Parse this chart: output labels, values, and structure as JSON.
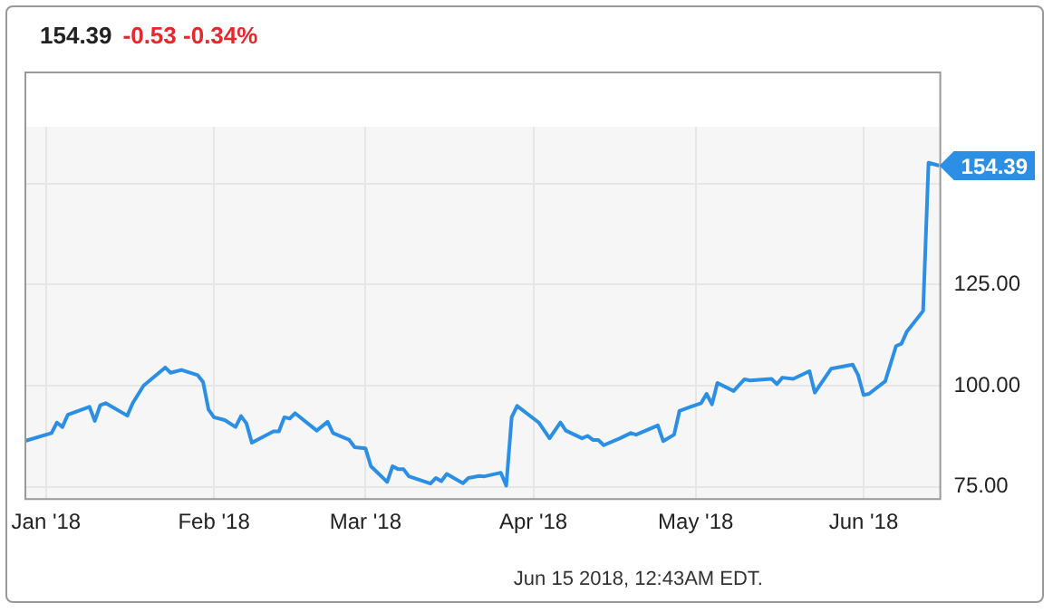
{
  "chart_data": {
    "type": "line",
    "title": "154.39",
    "subtitle": "-0.53 -0.34%",
    "x": [
      "2017-12-28",
      "2018-01-02",
      "2018-01-03",
      "2018-01-04",
      "2018-01-05",
      "2018-01-09",
      "2018-01-10",
      "2018-01-11",
      "2018-01-12",
      "2018-01-16",
      "2018-01-17",
      "2018-01-19",
      "2018-01-23",
      "2018-01-24",
      "2018-01-26",
      "2018-01-29",
      "2018-01-30",
      "2018-01-31",
      "2018-02-01",
      "2018-02-03",
      "2018-02-05",
      "2018-02-06",
      "2018-02-07",
      "2018-02-08",
      "2018-02-12",
      "2018-02-13",
      "2018-02-14",
      "2018-02-15",
      "2018-02-16",
      "2018-02-20",
      "2018-02-22",
      "2018-02-23",
      "2018-02-26",
      "2018-02-27",
      "2018-03-01",
      "2018-03-02",
      "2018-03-05",
      "2018-03-06",
      "2018-03-07",
      "2018-03-08",
      "2018-03-09",
      "2018-03-13",
      "2018-03-14",
      "2018-03-15",
      "2018-03-16",
      "2018-03-19",
      "2018-03-20",
      "2018-03-22",
      "2018-03-23",
      "2018-03-26",
      "2018-03-27",
      "2018-03-28",
      "2018-03-29",
      "2018-04-02",
      "2018-04-04",
      "2018-04-06",
      "2018-04-07",
      "2018-04-10",
      "2018-04-11",
      "2018-04-12",
      "2018-04-13",
      "2018-04-14",
      "2018-04-17",
      "2018-04-19",
      "2018-04-20",
      "2018-04-24",
      "2018-04-25",
      "2018-04-27",
      "2018-04-28",
      "2018-05-02",
      "2018-05-03",
      "2018-05-04",
      "2018-05-05",
      "2018-05-08",
      "2018-05-10",
      "2018-05-11",
      "2018-05-15",
      "2018-05-16",
      "2018-05-17",
      "2018-05-19",
      "2018-05-22",
      "2018-05-23",
      "2018-05-26",
      "2018-05-30",
      "2018-05-31",
      "2018-06-01",
      "2018-06-02",
      "2018-06-05",
      "2018-06-07",
      "2018-06-08",
      "2018-06-09",
      "2018-06-12",
      "2018-06-13",
      "2018-06-15"
    ],
    "series": [
      {
        "color": "#2b8fe6",
        "values": [
          86.3,
          88.3,
          90.9,
          89.8,
          92.8,
          94.8,
          91.3,
          95.2,
          95.7,
          92.6,
          95.7,
          100,
          104.5,
          103.2,
          103.9,
          102.6,
          100.9,
          94.1,
          92.2,
          91.5,
          89.8,
          92.5,
          90.7,
          85.9,
          88.7,
          88.7,
          92.2,
          91.9,
          93.2,
          88.9,
          91.1,
          88.3,
          86.6,
          84.8,
          84.5,
          80.1,
          76.2,
          80.1,
          79.4,
          79.4,
          77.6,
          75.8,
          77.2,
          76.4,
          78.2,
          75.9,
          77.2,
          77.7,
          77.6,
          78.5,
          75.3,
          92.2,
          95.0,
          90.9,
          87.0,
          90.9,
          88.9,
          87.0,
          87.6,
          86.6,
          86.6,
          85.3,
          87.0,
          88.3,
          87.9,
          90.2,
          86.3,
          87.9,
          93.8,
          95.7,
          98.0,
          95.4,
          100.7,
          98.7,
          101.6,
          101.3,
          101.7,
          100.4,
          102.0,
          101.7,
          103.6,
          98.3,
          104.2,
          105.2,
          102.6,
          97.7,
          98.0,
          101.1,
          109.8,
          110.4,
          113.4,
          118.5,
          155.1,
          154.39
        ]
      }
    ],
    "xlim": [
      "2017-12-28",
      "2018-06-15"
    ],
    "xticks": [
      {
        "value": "2018-01-01",
        "label": "Jan '18"
      },
      {
        "value": "2018-02-01",
        "label": "Feb '18"
      },
      {
        "value": "2018-03-01",
        "label": "Mar '18"
      },
      {
        "value": "2018-04-01",
        "label": "Apr '18"
      },
      {
        "value": "2018-05-01",
        "label": "May '18"
      },
      {
        "value": "2018-06-01",
        "label": "Jun '18"
      }
    ],
    "ylim": [
      72,
      164
    ],
    "yticks": [
      {
        "value": 75,
        "label": "75.00"
      },
      {
        "value": 100,
        "label": "100.00"
      },
      {
        "value": 125,
        "label": "125.00"
      },
      {
        "value": 150,
        "label": null
      }
    ],
    "annotations": [
      {
        "text": "154.39",
        "x": "2018-06-15",
        "y": 154.39
      },
      "Jun 15 2018, 12:43AM EDT."
    ],
    "grid": true,
    "legend": false,
    "marker": "none",
    "line_style": "solid"
  }
}
